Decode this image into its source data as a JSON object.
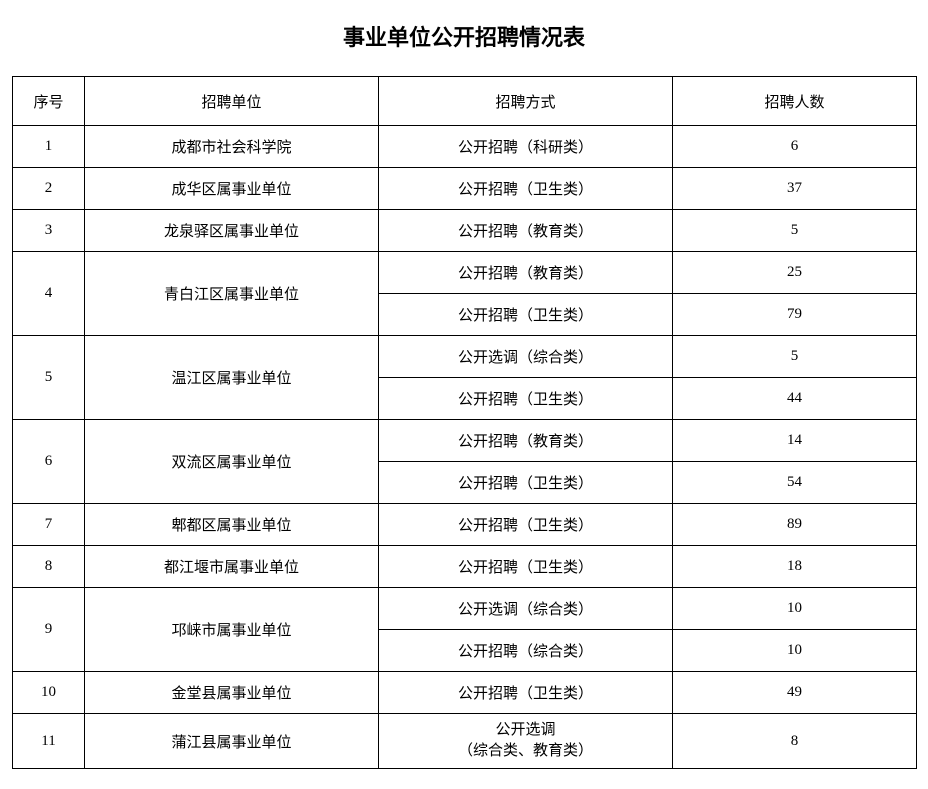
{
  "title": "事业单位公开招聘情况表",
  "columns": [
    "序号",
    "招聘单位",
    "招聘方式",
    "招聘人数"
  ],
  "rows": [
    {
      "no": "1",
      "unit": "成都市社会科学院",
      "methods": [
        {
          "method": "公开招聘（科研类）",
          "count": "6"
        }
      ]
    },
    {
      "no": "2",
      "unit": "成华区属事业单位",
      "methods": [
        {
          "method": "公开招聘（卫生类）",
          "count": "37"
        }
      ]
    },
    {
      "no": "3",
      "unit": "龙泉驿区属事业单位",
      "methods": [
        {
          "method": "公开招聘（教育类）",
          "count": "5"
        }
      ]
    },
    {
      "no": "4",
      "unit": "青白江区属事业单位",
      "methods": [
        {
          "method": "公开招聘（教育类）",
          "count": "25"
        },
        {
          "method": "公开招聘（卫生类）",
          "count": "79"
        }
      ]
    },
    {
      "no": "5",
      "unit": "温江区属事业单位",
      "methods": [
        {
          "method": "公开选调（综合类）",
          "count": "5"
        },
        {
          "method": "公开招聘（卫生类）",
          "count": "44"
        }
      ]
    },
    {
      "no": "6",
      "unit": "双流区属事业单位",
      "methods": [
        {
          "method": "公开招聘（教育类）",
          "count": "14"
        },
        {
          "method": "公开招聘（卫生类）",
          "count": "54"
        }
      ]
    },
    {
      "no": "7",
      "unit": "郫都区属事业单位",
      "methods": [
        {
          "method": "公开招聘（卫生类）",
          "count": "89"
        }
      ]
    },
    {
      "no": "8",
      "unit": "都江堰市属事业单位",
      "methods": [
        {
          "method": "公开招聘（卫生类）",
          "count": "18"
        }
      ]
    },
    {
      "no": "9",
      "unit": "邛崃市属事业单位",
      "methods": [
        {
          "method": "公开选调（综合类）",
          "count": "10"
        },
        {
          "method": "公开招聘（综合类）",
          "count": "10"
        }
      ]
    },
    {
      "no": "10",
      "unit": "金堂县属事业单位",
      "methods": [
        {
          "method": "公开招聘（卫生类）",
          "count": "49"
        }
      ]
    },
    {
      "no": "11",
      "unit": "蒲江县属事业单位",
      "methods": [
        {
          "method": "公开选调\n（综合类、教育类）",
          "count": "8"
        }
      ]
    }
  ]
}
